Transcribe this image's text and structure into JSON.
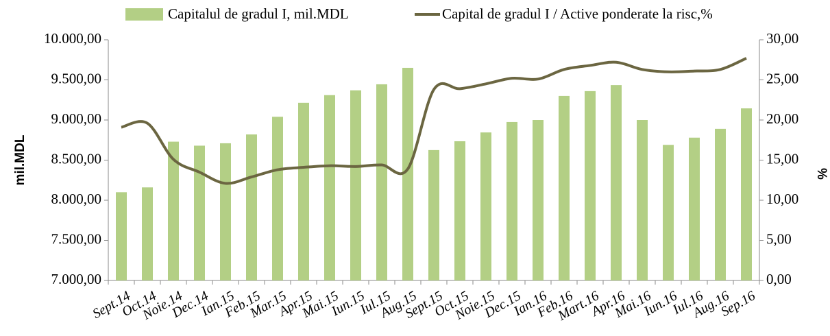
{
  "chart_data": {
    "type": "bar_line",
    "categories": [
      "Sept.14",
      "Oct.14",
      "Noie.14",
      "Dec.14",
      "Ian.15",
      "Feb.15",
      "Mar.15",
      "Apr.15",
      "Mai.15",
      "Iun.15",
      "Iul.15",
      "Aug.15",
      "Sept.15",
      "Oct.15",
      "Noie.15",
      "Dec.15",
      "Ian.16",
      "Feb.16",
      "Mart.16",
      "Apr.16",
      "Mai.16",
      "Iun.16",
      "Iul.16",
      "Aug.16",
      "Sep.16"
    ],
    "series": [
      {
        "name": "Capitalul de gradul I, mil.MDL",
        "type": "bar",
        "color": "#b3cf85",
        "axis": "y",
        "values": [
          8100,
          8160,
          8730,
          8680,
          8710,
          8820,
          9040,
          9215,
          9310,
          9370,
          9445,
          9650,
          8625,
          8735,
          8845,
          8975,
          9000,
          9300,
          9360,
          9435,
          9000,
          8690,
          8780,
          8890,
          9145
        ]
      },
      {
        "name": "Capital de gradul I / Active ponderate la risc,%",
        "type": "line",
        "color": "#6b6641",
        "axis": "y2",
        "values": [
          19.1,
          19.6,
          15.1,
          13.5,
          12.1,
          12.9,
          13.8,
          14.1,
          14.3,
          14.2,
          14.4,
          13.9,
          23.8,
          23.9,
          24.5,
          25.2,
          25.1,
          26.3,
          26.8,
          27.2,
          26.3,
          26.0,
          26.1,
          26.3,
          27.7
        ]
      }
    ],
    "y_label": "mil.MDL",
    "y2_label": "%",
    "ylim": [
      7000,
      10000
    ],
    "yticks": [
      {
        "value": 7000,
        "label": "7.000,00"
      },
      {
        "value": 7500,
        "label": "7.500,00"
      },
      {
        "value": 8000,
        "label": "8.000,00"
      },
      {
        "value": 8500,
        "label": "8.500,00"
      },
      {
        "value": 9000,
        "label": "9.000,00"
      },
      {
        "value": 9500,
        "label": "9.500,00"
      },
      {
        "value": 10000,
        "label": "10.000,00"
      }
    ],
    "y2lim": [
      0,
      30
    ],
    "y2ticks": [
      {
        "value": 0,
        "label": "0,00"
      },
      {
        "value": 5,
        "label": "5,00"
      },
      {
        "value": 10,
        "label": "10,00"
      },
      {
        "value": 15,
        "label": "15,00"
      },
      {
        "value": 20,
        "label": "20,00"
      },
      {
        "value": 25,
        "label": "25,00"
      },
      {
        "value": 30,
        "label": "30,00"
      }
    ],
    "grid": false,
    "legend": "top"
  }
}
